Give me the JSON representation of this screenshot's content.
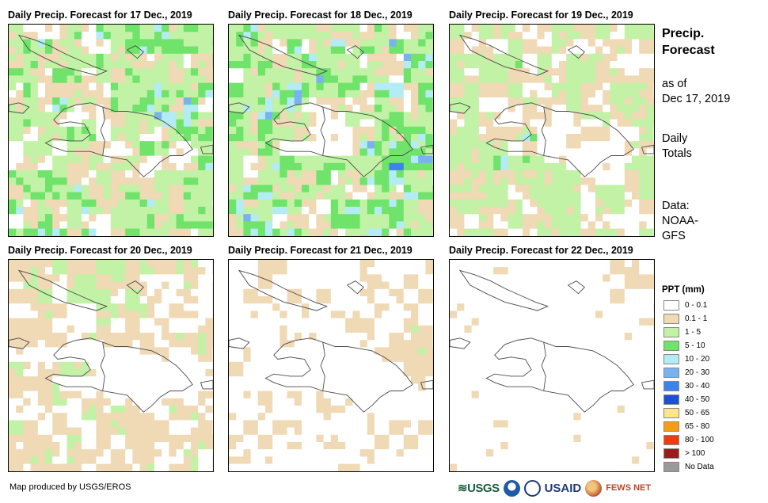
{
  "panels": [
    {
      "title": "Daily Precip. Forecast for 17 Dec., 2019",
      "seed": 17,
      "wetness": 1.0,
      "peak": [
        0.68,
        0.45
      ]
    },
    {
      "title": "Daily Precip. Forecast for 18 Dec., 2019",
      "seed": 18,
      "wetness": 1.05,
      "peak": [
        0.72,
        0.58
      ]
    },
    {
      "title": "Daily Precip. Forecast for 19 Dec., 2019",
      "seed": 19,
      "wetness": 0.75,
      "peak": [
        0.35,
        0.62
      ]
    },
    {
      "title": "Daily Precip. Forecast for 20 Dec., 2019",
      "seed": 20,
      "wetness": 0.55,
      "peak": [
        0.45,
        0.05
      ]
    },
    {
      "title": "Daily Precip. Forecast for 21 Dec., 2019",
      "seed": 21,
      "wetness": 0.35,
      "peak": [
        0.95,
        0.4
      ]
    },
    {
      "title": "Daily Precip. Forecast for 22 Dec., 2019",
      "seed": 22,
      "wetness": 0.25,
      "peak": [
        0.9,
        0.1
      ]
    }
  ],
  "sidebar": {
    "title_line1": "Precip.",
    "title_line2": "Forecast",
    "asof_line1": "as of",
    "asof_line2": "Dec 17, 2019",
    "daily_line1": "Daily",
    "daily_line2": "Totals",
    "data_line1": "Data:",
    "data_line2": "NOAA-",
    "data_line3": "GFS"
  },
  "legend": {
    "title": "PPT (mm)",
    "items": [
      {
        "label": "0 - 0.1",
        "color": "#ffffff"
      },
      {
        "label": "0.1 - 1",
        "color": "#f0d9b5"
      },
      {
        "label": "1 - 5",
        "color": "#c2f2a5"
      },
      {
        "label": "5 - 10",
        "color": "#6fe36a"
      },
      {
        "label": "10 - 20",
        "color": "#b3ecf4"
      },
      {
        "label": "20 - 30",
        "color": "#78b3f0"
      },
      {
        "label": "30 - 40",
        "color": "#3c84ea"
      },
      {
        "label": "40 - 50",
        "color": "#1c50d8"
      },
      {
        "label": "50 - 65",
        "color": "#fde68a"
      },
      {
        "label": "65 - 80",
        "color": "#f79c12"
      },
      {
        "label": "80 - 100",
        "color": "#ef3b10"
      },
      {
        "label": "> 100",
        "color": "#9b1b1b"
      },
      {
        "label": "No Data",
        "color": "#9a9a9a"
      }
    ]
  },
  "credit": "Map produced by USGS/EROS",
  "logos": {
    "usgs": "≋USGS",
    "usaid": "USAID",
    "fews": "FEWS NET",
    "noaa_color": "#1d5aa8",
    "usaid_seal_color": "#1f3b73",
    "fews_color": "#b5482a"
  }
}
